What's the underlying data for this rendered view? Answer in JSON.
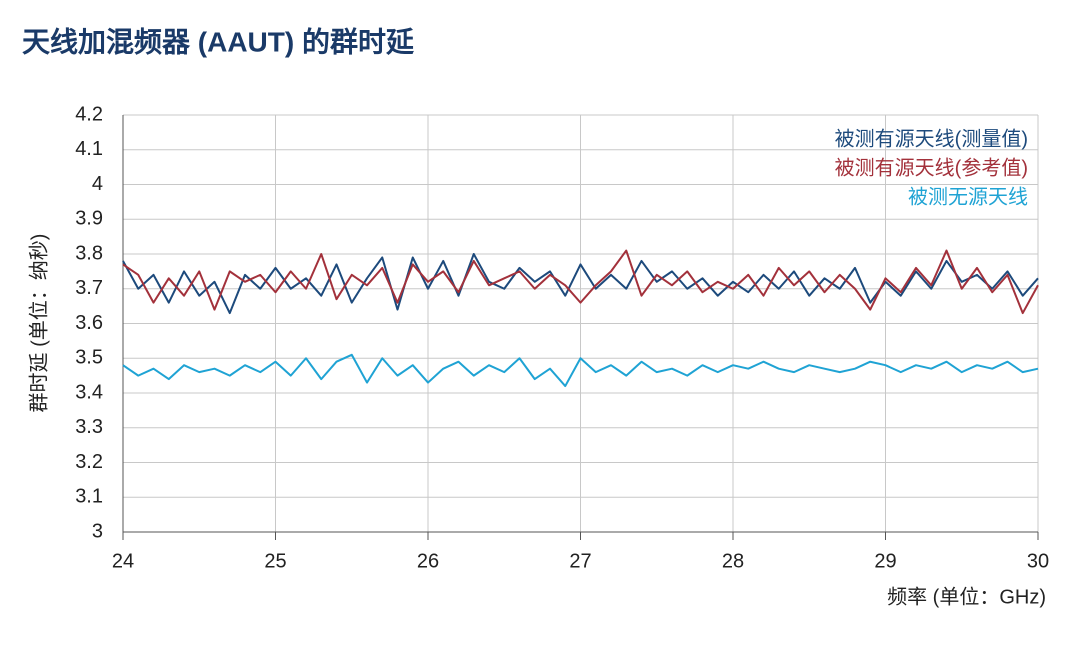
{
  "chart_data": {
    "type": "line",
    "title": "天线加混频器 (AAUT) 的群时延",
    "y_label": "群时延 (单位：纳秒)",
    "x_label": "频率 (单位：GHz)",
    "x": [
      24,
      24.1,
      24.2,
      24.3,
      24.4,
      24.5,
      24.6,
      24.7,
      24.8,
      24.9,
      25,
      25.1,
      25.2,
      25.3,
      25.4,
      25.5,
      25.6,
      25.7,
      25.8,
      25.9,
      26,
      26.1,
      26.2,
      26.3,
      26.4,
      26.5,
      26.6,
      26.7,
      26.8,
      26.9,
      27,
      27.1,
      27.2,
      27.3,
      27.4,
      27.5,
      27.6,
      27.7,
      27.8,
      27.9,
      28,
      28.1,
      28.2,
      28.3,
      28.4,
      28.5,
      28.6,
      28.7,
      28.8,
      28.9,
      29,
      29.1,
      29.2,
      29.3,
      29.4,
      29.5,
      29.6,
      29.7,
      29.8,
      29.9,
      30
    ],
    "series": [
      {
        "name": "被测有源天线(测量值)",
        "color": "#1d4a7c",
        "values": [
          3.78,
          3.7,
          3.74,
          3.66,
          3.75,
          3.68,
          3.72,
          3.63,
          3.74,
          3.7,
          3.76,
          3.7,
          3.73,
          3.68,
          3.77,
          3.66,
          3.73,
          3.79,
          3.64,
          3.79,
          3.7,
          3.78,
          3.68,
          3.8,
          3.72,
          3.7,
          3.76,
          3.72,
          3.75,
          3.68,
          3.77,
          3.7,
          3.74,
          3.7,
          3.78,
          3.72,
          3.75,
          3.7,
          3.73,
          3.68,
          3.72,
          3.69,
          3.74,
          3.7,
          3.75,
          3.68,
          3.73,
          3.7,
          3.76,
          3.66,
          3.72,
          3.68,
          3.75,
          3.7,
          3.78,
          3.72,
          3.74,
          3.7,
          3.75,
          3.68,
          3.73
        ]
      },
      {
        "name": "被测有源天线(参考值)",
        "color": "#a3313b",
        "values": [
          3.77,
          3.74,
          3.66,
          3.73,
          3.68,
          3.75,
          3.64,
          3.75,
          3.72,
          3.74,
          3.69,
          3.75,
          3.7,
          3.8,
          3.67,
          3.74,
          3.71,
          3.76,
          3.66,
          3.77,
          3.72,
          3.75,
          3.69,
          3.78,
          3.71,
          3.73,
          3.75,
          3.7,
          3.74,
          3.71,
          3.66,
          3.71,
          3.75,
          3.81,
          3.68,
          3.74,
          3.71,
          3.75,
          3.69,
          3.72,
          3.7,
          3.74,
          3.68,
          3.76,
          3.71,
          3.75,
          3.69,
          3.74,
          3.7,
          3.64,
          3.73,
          3.69,
          3.76,
          3.71,
          3.81,
          3.7,
          3.76,
          3.69,
          3.74,
          3.63,
          3.71
        ]
      },
      {
        "name": "被测无源天线",
        "color": "#1fa3d4",
        "values": [
          3.48,
          3.45,
          3.47,
          3.44,
          3.48,
          3.46,
          3.47,
          3.45,
          3.48,
          3.46,
          3.49,
          3.45,
          3.5,
          3.44,
          3.49,
          3.51,
          3.43,
          3.5,
          3.45,
          3.48,
          3.43,
          3.47,
          3.49,
          3.45,
          3.48,
          3.46,
          3.5,
          3.44,
          3.47,
          3.42,
          3.5,
          3.46,
          3.48,
          3.45,
          3.49,
          3.46,
          3.47,
          3.45,
          3.48,
          3.46,
          3.48,
          3.47,
          3.49,
          3.47,
          3.46,
          3.48,
          3.47,
          3.46,
          3.47,
          3.49,
          3.48,
          3.46,
          3.48,
          3.47,
          3.49,
          3.46,
          3.48,
          3.47,
          3.49,
          3.46,
          3.47
        ]
      }
    ],
    "xlim": [
      24,
      30
    ],
    "xticks": [
      24,
      25,
      26,
      27,
      28,
      29,
      30
    ],
    "ylim": [
      3,
      4.2
    ],
    "yticks": [
      3,
      3.1,
      3.2,
      3.3,
      3.4,
      3.5,
      3.6,
      3.7,
      3.8,
      3.9,
      4,
      4.1,
      4.2
    ],
    "grid": true,
    "legend": "upper right"
  }
}
